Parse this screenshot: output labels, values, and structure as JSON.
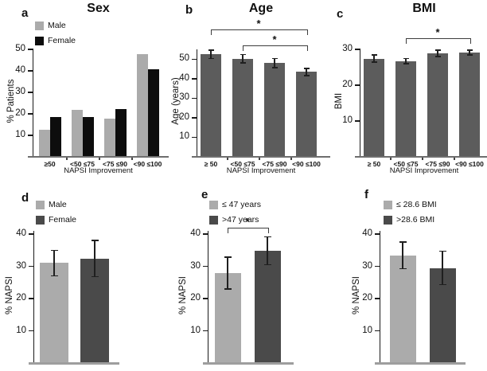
{
  "figure": {
    "background": "#ffffff"
  },
  "colors": {
    "light_gray": "#ababab",
    "black": "#0d0d0d",
    "medium_gray": "#5c5c5c",
    "dark_gray": "#4a4a4a"
  },
  "chart_data": [
    {
      "type": "bar",
      "label": "a",
      "title": "Sex",
      "ylabel": "% Patients",
      "xlabel": "NAPSI Improvement",
      "ylim": [
        0,
        50
      ],
      "yticks": [
        10,
        20,
        30,
        40,
        50
      ],
      "categories": [
        "≥50",
        "<50 ≤75",
        "<75 ≤90",
        "<90 ≤100"
      ],
      "legend": [
        {
          "label": "Male",
          "color": "#ababab"
        },
        {
          "label": "Female",
          "color": "#0d0d0d"
        }
      ],
      "series": [
        {
          "name": "Male",
          "color": "#ababab",
          "values": [
            12.5,
            21.7,
            17.6,
            47.7
          ]
        },
        {
          "name": "Female",
          "color": "#0d0d0d",
          "values": [
            18.6,
            18.6,
            22.2,
            40.7
          ]
        }
      ]
    },
    {
      "type": "bar",
      "label": "b",
      "title": "Age",
      "ylabel": "Age (years)",
      "xlabel": "NAPSI Improvement",
      "ylim": [
        0,
        55
      ],
      "yticks": [
        10,
        20,
        30,
        40,
        50
      ],
      "categories": [
        "≥ 50",
        "<50 ≤75",
        "<75 ≤90",
        "<90 ≤100"
      ],
      "series": [
        {
          "name": "Age",
          "color": "#5c5c5c",
          "values": [
            52.5,
            50.2,
            48.0,
            43.4
          ],
          "errors": [
            2.2,
            2.2,
            2.4,
            1.8
          ]
        }
      ],
      "brackets": [
        {
          "from": 0,
          "to": 3,
          "label": "*"
        },
        {
          "from": 1,
          "to": 3,
          "label": "*"
        }
      ]
    },
    {
      "type": "bar",
      "label": "c",
      "title": "BMI",
      "ylabel": "BMI",
      "xlabel": "NAPSI Improvement",
      "ylim": [
        0,
        30
      ],
      "yticks": [
        10,
        20,
        30
      ],
      "categories": [
        "≥ 50",
        "<50 ≤75",
        "<75 ≤90",
        "<90 ≤100"
      ],
      "series": [
        {
          "name": "BMI",
          "color": "#5c5c5c",
          "values": [
            27.4,
            26.7,
            28.9,
            29.1
          ],
          "errors": [
            1.0,
            0.7,
            0.9,
            0.7
          ]
        }
      ],
      "brackets": [
        {
          "from": 1,
          "to": 3,
          "label": "*"
        }
      ]
    },
    {
      "type": "bar",
      "label": "d",
      "ylabel": "% NAPSI",
      "ylim": [
        0,
        41
      ],
      "yticks": [
        10,
        20,
        30,
        40
      ],
      "categories": [
        ""
      ],
      "legend": [
        {
          "label": "Male",
          "color": "#ababab"
        },
        {
          "label": "Female",
          "color": "#4a4a4a"
        }
      ],
      "series": [
        {
          "name": "Male",
          "color": "#ababab",
          "values": [
            31.0
          ],
          "errors": [
            3.9
          ]
        },
        {
          "name": "Female",
          "color": "#4a4a4a",
          "values": [
            32.4
          ],
          "errors": [
            5.6
          ]
        }
      ]
    },
    {
      "type": "bar",
      "label": "e",
      "ylabel": "% NAPSI",
      "ylim": [
        0,
        41
      ],
      "yticks": [
        10,
        20,
        30,
        40
      ],
      "categories": [
        ""
      ],
      "legend": [
        {
          "label": "≤ 47 years",
          "color": "#ababab"
        },
        {
          "label": ">47 years",
          "color": "#4a4a4a"
        }
      ],
      "series": [
        {
          "name": "≤ 47 years",
          "color": "#ababab",
          "values": [
            27.9
          ],
          "errors": [
            4.9
          ]
        },
        {
          "name": ">47 years",
          "color": "#4a4a4a",
          "values": [
            34.8
          ],
          "errors": [
            4.3
          ]
        }
      ],
      "brackets": [
        {
          "from": 0,
          "to": 1,
          "label": "*"
        }
      ]
    },
    {
      "type": "bar",
      "label": "f",
      "ylabel": "% NAPSI",
      "ylim": [
        0,
        41
      ],
      "yticks": [
        10,
        20,
        30,
        40
      ],
      "categories": [
        ""
      ],
      "legend": [
        {
          "label": "≤ 28.6 BMI",
          "color": "#ababab"
        },
        {
          "label": ">28.6 BMI",
          "color": "#4a4a4a"
        }
      ],
      "series": [
        {
          "name": "≤ 28.6 BMI",
          "color": "#ababab",
          "values": [
            33.4
          ],
          "errors": [
            4.1
          ]
        },
        {
          "name": ">28.6 BMI",
          "color": "#4a4a4a",
          "values": [
            29.5
          ],
          "errors": [
            5.2
          ]
        }
      ]
    }
  ]
}
